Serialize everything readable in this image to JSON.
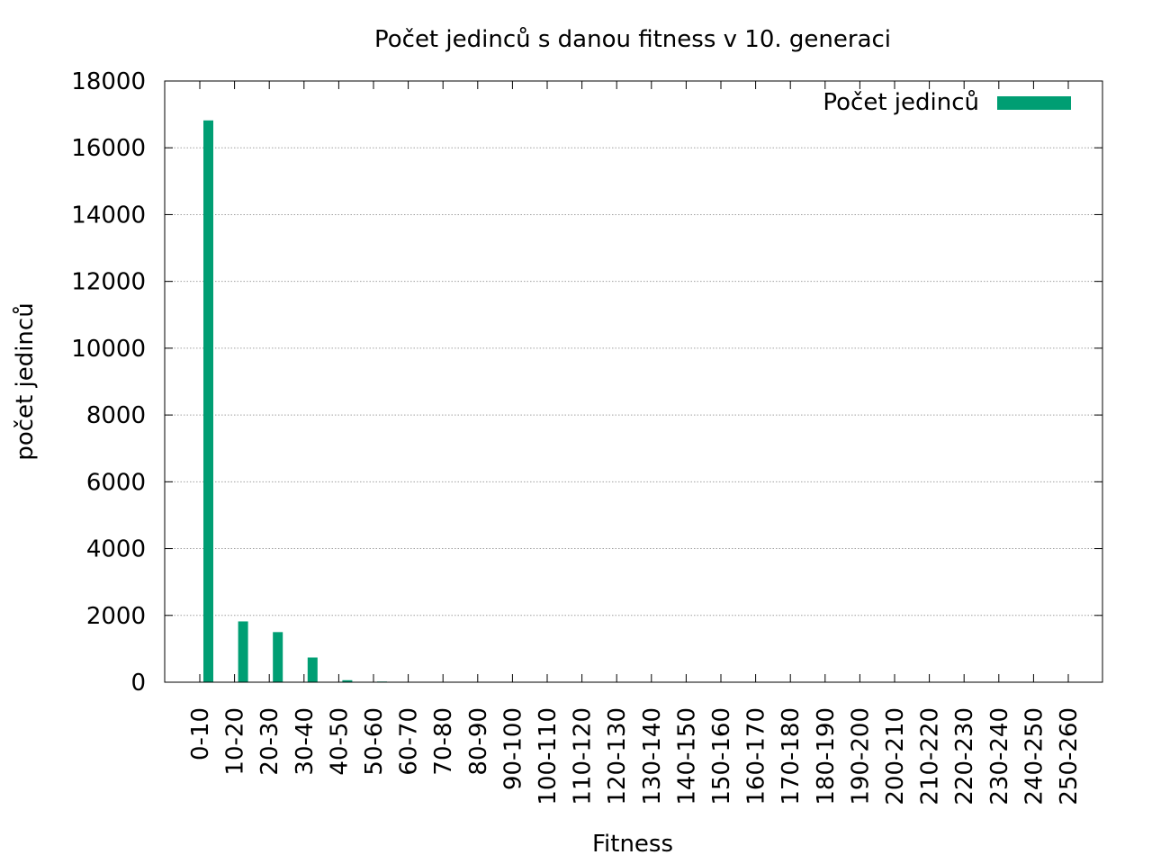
{
  "chart_data": {
    "type": "bar",
    "title": "Počet jedinců s danou fitness v 10. generaci",
    "xlabel": "Fitness",
    "ylabel": "počet jedinců",
    "categories": [
      "0-10",
      "10-20",
      "20-30",
      "30-40",
      "40-50",
      "50-60",
      "60-70",
      "70-80",
      "80-90",
      "90-100",
      "100-110",
      "110-120",
      "120-130",
      "130-140",
      "140-150",
      "150-160",
      "160-170",
      "170-180",
      "180-190",
      "190-200",
      "200-210",
      "210-220",
      "220-230",
      "230-240",
      "240-250",
      "250-260"
    ],
    "series": [
      {
        "name": "Počet jedinců",
        "values": [
          16820,
          1820,
          1500,
          740,
          60,
          20,
          0,
          0,
          0,
          0,
          0,
          0,
          0,
          0,
          0,
          0,
          0,
          0,
          0,
          0,
          0,
          0,
          0,
          0,
          0,
          0
        ],
        "color": "#009e73"
      }
    ],
    "ylim": [
      0,
      18000
    ],
    "yticks": [
      0,
      2000,
      4000,
      6000,
      8000,
      10000,
      12000,
      14000,
      16000,
      18000
    ],
    "grid": true,
    "legend_position": "top-right"
  }
}
